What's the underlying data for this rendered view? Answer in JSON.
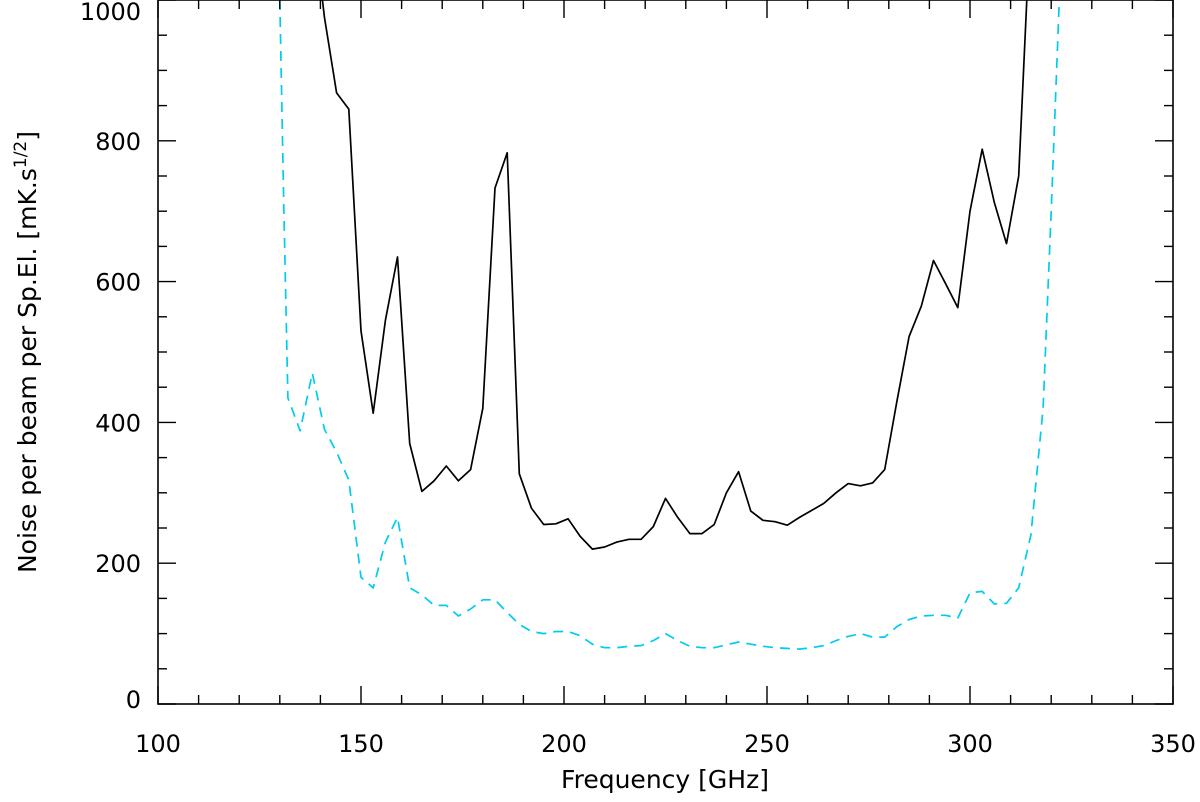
{
  "chart_data": {
    "type": "line",
    "title": "",
    "xlabel": "Frequency [GHz]",
    "ylabel_main": "Noise per beam per Sp.El. [mK.s",
    "ylabel_sup": "1/2",
    "ylabel_end": "]",
    "xlim": [
      100,
      350
    ],
    "ylim": [
      0,
      1000
    ],
    "xticks": [
      100,
      150,
      200,
      250,
      300,
      350
    ],
    "yticks": [
      0,
      200,
      400,
      600,
      800,
      1000
    ],
    "xtick_labels": [
      "100",
      "150",
      "200",
      "250",
      "300",
      "350"
    ],
    "ytick_labels": [
      "0",
      "200",
      "400",
      "600",
      "800",
      "1000"
    ],
    "grid": false,
    "series": [
      {
        "style": "solid",
        "color": "#000000",
        "x": [
          140.5,
          141,
          144,
          147,
          150,
          153,
          156,
          159,
          162,
          165,
          168,
          171,
          174,
          177,
          180,
          183,
          186,
          189,
          192,
          195,
          198,
          201,
          204,
          207,
          210,
          213,
          216,
          219,
          222,
          225,
          228,
          231,
          234,
          237,
          240,
          243,
          246,
          249,
          252,
          255,
          258,
          261,
          264,
          267,
          270,
          273,
          276,
          279,
          282,
          285,
          288,
          291,
          294,
          297,
          300,
          303,
          306,
          309,
          312,
          314
        ],
        "y": [
          1000,
          975,
          868,
          845,
          530,
          413,
          545,
          635,
          370,
          302,
          317,
          338,
          317,
          333,
          420,
          733,
          783,
          327,
          278,
          255,
          256,
          263,
          238,
          220,
          223,
          230,
          234,
          234,
          252,
          292,
          265,
          242,
          242,
          255,
          300,
          330,
          274,
          261,
          259,
          254,
          265,
          275,
          285,
          300,
          313,
          310,
          314,
          333,
          430,
          522,
          565,
          630,
          597,
          563,
          700,
          788,
          712,
          654,
          750,
          1000
        ]
      },
      {
        "style": "dashed",
        "color": "#00ccee",
        "x": [
          130,
          131,
          132,
          135,
          138,
          141,
          144,
          147,
          150,
          153,
          156,
          159,
          162,
          165,
          168,
          171,
          174,
          177,
          180,
          183,
          186,
          189,
          192,
          195,
          198,
          201,
          204,
          207,
          210,
          213,
          216,
          219,
          222,
          225,
          228,
          231,
          234,
          237,
          240,
          243,
          246,
          249,
          252,
          255,
          258,
          261,
          264,
          267,
          270,
          273,
          276,
          279,
          282,
          285,
          288,
          291,
          294,
          297,
          300,
          303,
          306,
          309,
          312,
          315,
          318,
          320,
          322
        ],
        "y": [
          1000,
          700,
          435,
          388,
          470,
          390,
          358,
          318,
          180,
          165,
          230,
          265,
          165,
          155,
          140,
          140,
          125,
          135,
          148,
          148,
          130,
          113,
          103,
          100,
          103,
          103,
          97,
          85,
          80,
          80,
          82,
          83,
          90,
          100,
          90,
          82,
          80,
          80,
          84,
          88,
          85,
          82,
          80,
          79,
          78,
          80,
          83,
          90,
          96,
          100,
          95,
          95,
          110,
          120,
          125,
          126,
          126,
          122,
          158,
          160,
          142,
          143,
          165,
          240,
          420,
          700,
          1000
        ]
      }
    ]
  }
}
